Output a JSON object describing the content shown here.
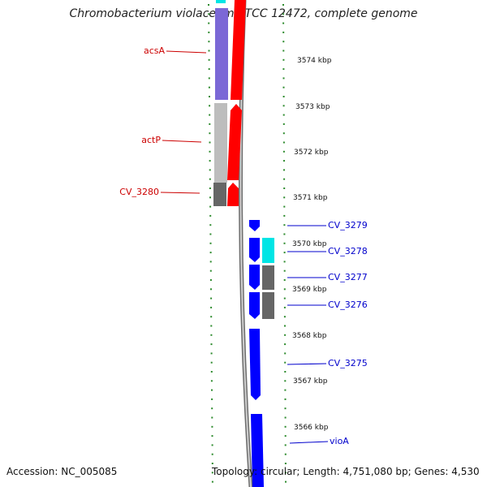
{
  "title": "Chromobacterium violaceum ATCC 12472, complete genome",
  "footer": {
    "accession": "Accession: NC_005085",
    "topology": "Topology: circular; Length: 4,751,080 bp; Genes: 4,530"
  },
  "colors": {
    "forward_label": "#cc0000",
    "reverse_label": "#0000cc",
    "ticks": "#2e8b2e",
    "backbone": "#7a7a7a",
    "red": "#ff0000",
    "purple": "#7b68d6",
    "light_grey": "#bdbdbd",
    "dark_grey": "#666666",
    "blue": "#0000ff",
    "cyan": "#00e5e5"
  },
  "scale_labels": [
    "3574 kbp",
    "3573 kbp",
    "3572 kbp",
    "3571 kbp",
    "3570 kbp",
    "3569 kbp",
    "3568 kbp",
    "3567 kbp",
    "3566 kbp"
  ],
  "gene_labels": {
    "forward": [
      "acsA",
      "actP",
      "CV_3280"
    ],
    "reverse": [
      "CV_3279",
      "CV_3278",
      "CV_3277",
      "CV_3276",
      "CV_3275",
      "vioA"
    ]
  }
}
